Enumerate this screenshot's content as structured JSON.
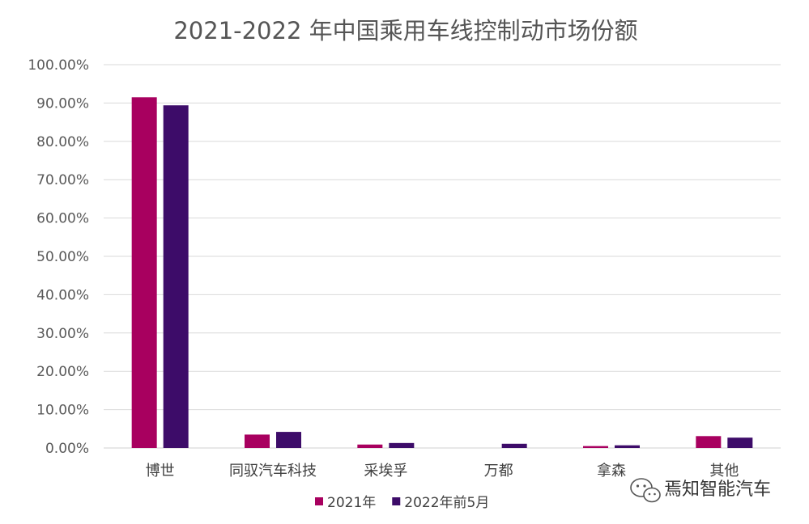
{
  "chart_data": {
    "type": "bar",
    "title": "2021-2022 年中国乘用车线控制动市场份额",
    "categories": [
      "博世",
      "同驭汽车科技",
      "采埃孚",
      "万都",
      "拿森",
      "其他"
    ],
    "series": [
      {
        "name": "2021年",
        "color": "#a8005f",
        "values": [
          91.5,
          3.5,
          0.9,
          0.0,
          0.5,
          3.1
        ]
      },
      {
        "name": "2022年前5月",
        "color": "#3d0c69",
        "values": [
          89.4,
          4.2,
          1.3,
          1.1,
          0.7,
          2.7
        ]
      }
    ],
    "ylim": [
      0,
      100
    ],
    "yticks": [
      "0.00%",
      "10.00%",
      "20.00%",
      "30.00%",
      "40.00%",
      "50.00%",
      "60.00%",
      "70.00%",
      "80.00%",
      "90.00%",
      "100.00%"
    ],
    "grid": true,
    "legend": "bottom"
  },
  "watermark": {
    "text": "焉知智能汽车",
    "icon": "wechat-icon"
  }
}
